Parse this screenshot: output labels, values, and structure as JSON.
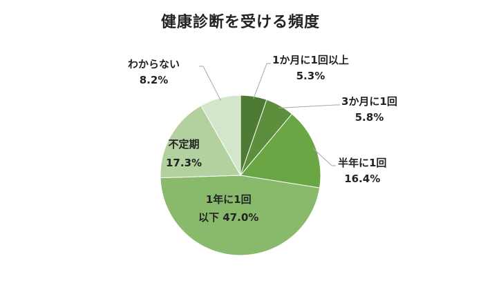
{
  "chart_data": {
    "type": "pie",
    "title": "健康診断を受ける頻度",
    "start_angle_deg": 0,
    "direction": "clockwise",
    "slices": [
      {
        "label": "1か月に1回以上",
        "value": 5.3,
        "value_label": "5.3%",
        "color": "#4e7b34"
      },
      {
        "label": "3か月に1回",
        "value": 5.8,
        "value_label": "5.8%",
        "color": "#5d8e3c"
      },
      {
        "label": "半年に1回",
        "value": 16.4,
        "value_label": "16.4%",
        "color": "#6aa643"
      },
      {
        "label": "1年に1回以下",
        "label_lines": [
          "1年に1回",
          "以下"
        ],
        "value": 47.0,
        "value_label": "47.0%",
        "color": "#89b96b"
      },
      {
        "label": "不定期",
        "value": 17.3,
        "value_label": "17.3%",
        "color": "#b2d19e"
      },
      {
        "label": "わからない",
        "value": 8.2,
        "value_label": "8.2%",
        "color": "#d4e6c9"
      }
    ]
  }
}
